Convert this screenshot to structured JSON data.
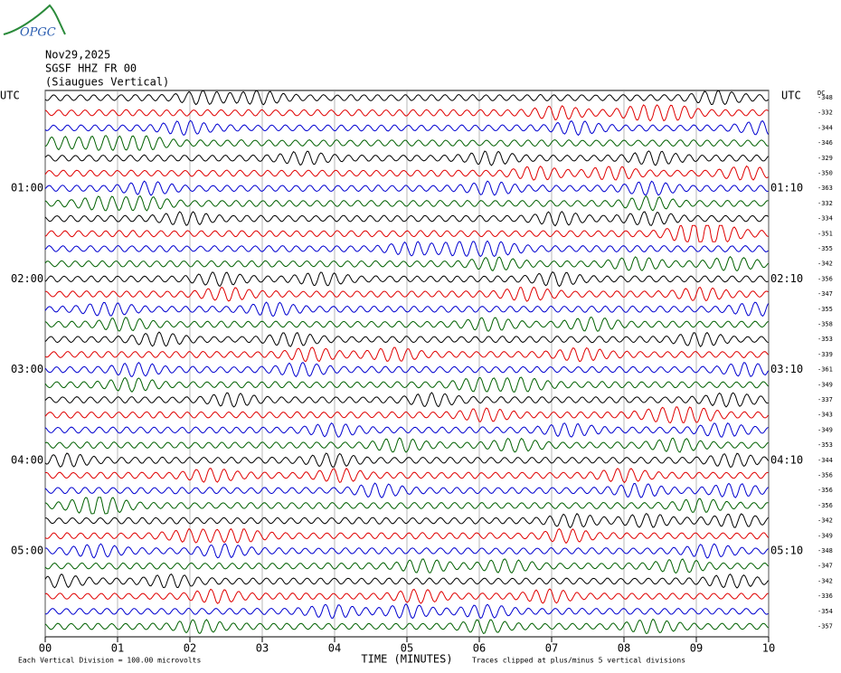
{
  "logo": "OPGC",
  "header": {
    "date": "Nov29,2025",
    "station": "SGSF HHZ FR 00",
    "location": "(Siaugues Vertical)"
  },
  "left_axis_label": "UTC",
  "right_axis_label": "UTC",
  "offset_header": "DC",
  "time_labels_left": [
    "01:00",
    "02:00",
    "03:00",
    "04:00",
    "05:00"
  ],
  "time_labels_right": [
    "01:10",
    "02:10",
    "03:10",
    "04:10",
    "05:10"
  ],
  "trace_colors": [
    "#000000",
    "#e00000",
    "#0000d0",
    "#006000"
  ],
  "offsets": [
    -348,
    -332,
    -344,
    -346,
    -329,
    -350,
    -363,
    -332,
    -334,
    -351,
    -355,
    -342,
    -356,
    -347,
    -355,
    -358,
    -353,
    -339,
    -361,
    -349,
    -337,
    -343,
    -349,
    -353,
    -344,
    -356,
    -356,
    -356,
    -342,
    -349,
    -348,
    -347,
    -342,
    -336,
    -354,
    -357
  ],
  "x_axis": {
    "label": "TIME (MINUTES)",
    "xlim": [
      0,
      10
    ],
    "xticks": [
      {
        "value": 0,
        "label": "00"
      },
      {
        "value": 1,
        "label": "01"
      },
      {
        "value": 2,
        "label": "02"
      },
      {
        "value": 3,
        "label": "03"
      },
      {
        "value": 4,
        "label": "04"
      },
      {
        "value": 5,
        "label": "05"
      },
      {
        "value": 6,
        "label": "06"
      },
      {
        "value": 7,
        "label": "07"
      },
      {
        "value": 8,
        "label": "08"
      },
      {
        "value": 9,
        "label": "09"
      },
      {
        "value": 10,
        "label": "10"
      }
    ]
  },
  "footer": {
    "scale": "Each Vertical Division =  100.00 microvolts",
    "clip": "Traces clipped at plus/minus 5 vertical divisions"
  }
}
